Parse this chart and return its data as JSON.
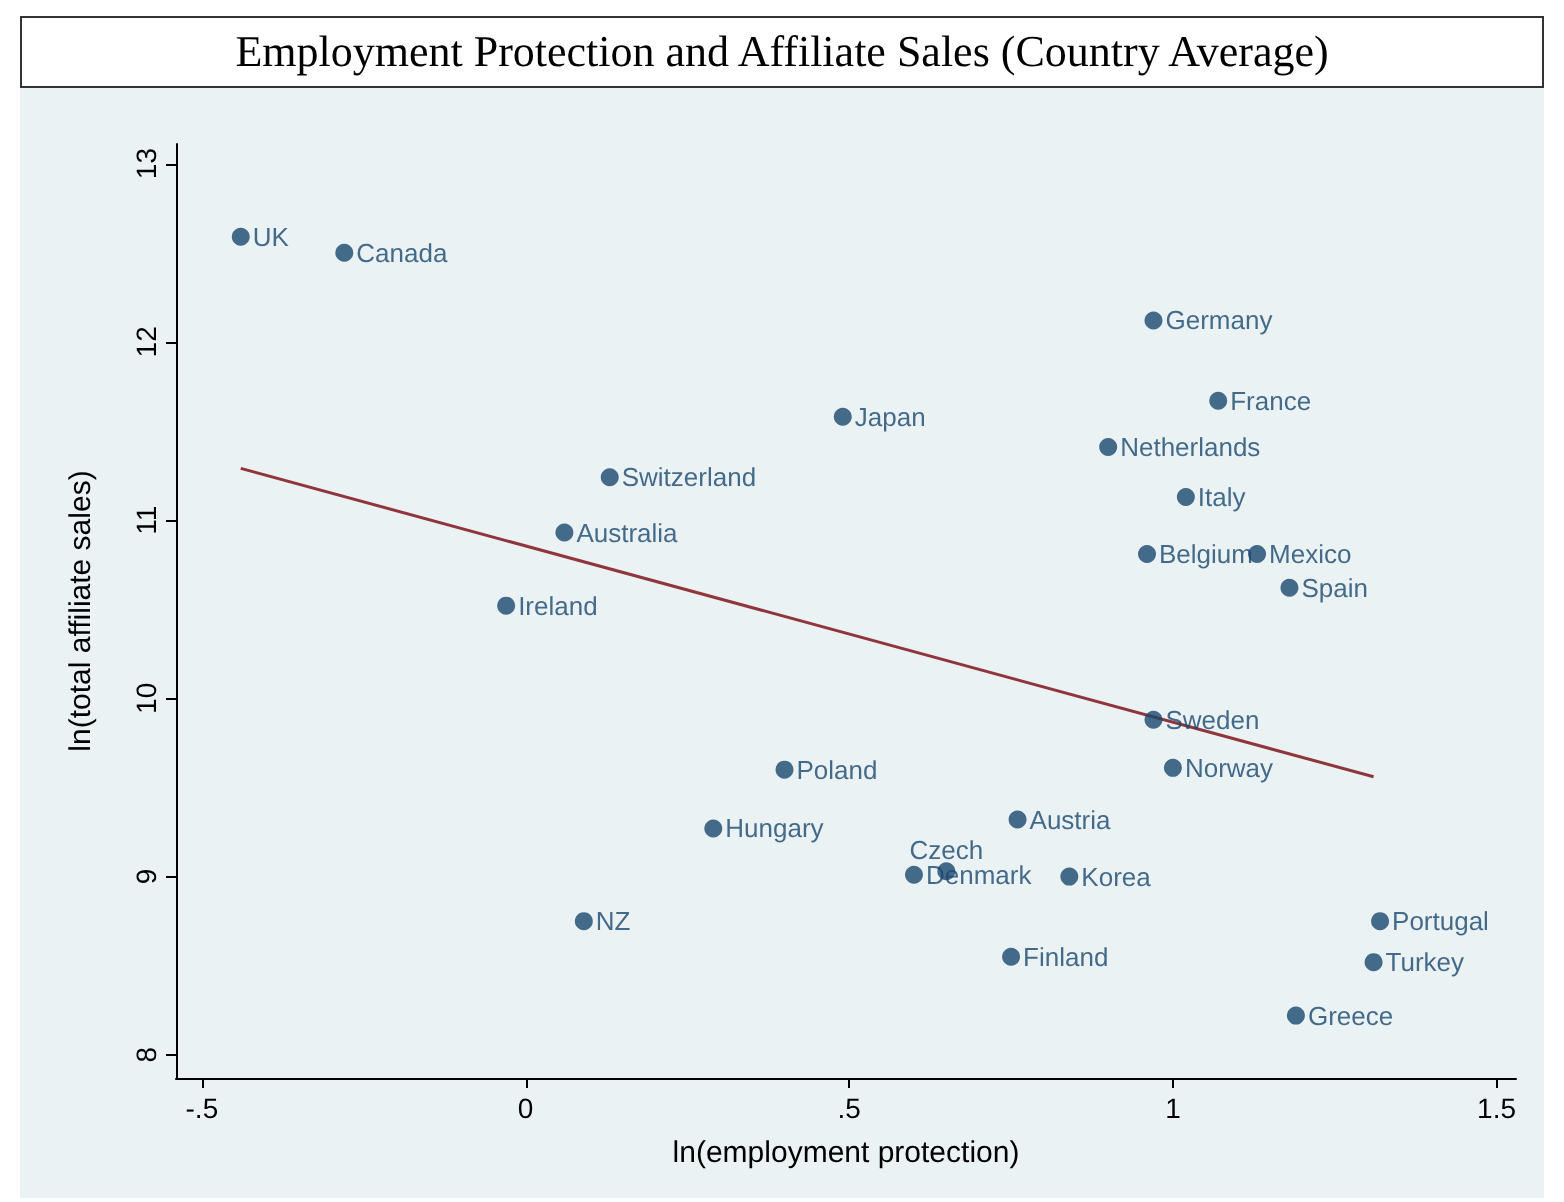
{
  "chart_data": {
    "type": "scatter",
    "title": "Employment Protection and Affiliate Sales (Country Average)",
    "xlabel": "ln(employment protection)",
    "ylabel": "ln(total affiliate sales)",
    "xlim": [
      -0.54,
      1.53
    ],
    "xticks": [
      {
        "value": -0.5,
        "label": "-.5"
      },
      0,
      {
        "value": 0.5,
        "label": ".5"
      },
      1,
      {
        "value": 1.5,
        "label": "1.5"
      }
    ],
    "ylim": [
      7.87,
      13.11
    ],
    "yticks": [
      8,
      9,
      10,
      11,
      12,
      13
    ],
    "marker": "circle",
    "grid": false,
    "series": [
      {
        "color": "#1a476f",
        "x": [
          -0.44,
          -0.28,
          0.97,
          1.07,
          0.49,
          0.9,
          0.13,
          1.02,
          0.06,
          0.96,
          1.13,
          1.18,
          -0.03,
          0.97,
          1.0,
          0.4,
          0.29,
          0.76,
          0.6,
          0.65,
          0.84,
          0.09,
          1.32,
          0.75,
          1.31,
          1.19
        ],
        "values": [
          12.59,
          12.5,
          12.12,
          11.67,
          11.58,
          11.41,
          11.24,
          11.13,
          10.93,
          10.81,
          10.81,
          10.62,
          10.52,
          9.88,
          9.61,
          9.6,
          9.27,
          9.32,
          9.01,
          9.03,
          9.0,
          8.75,
          8.75,
          8.55,
          8.52,
          8.22
        ]
      },
      {
        "type": "line",
        "color": "#90353b",
        "marker": "none",
        "x": [
          -0.44,
          1.31
        ],
        "values": [
          11.29,
          9.56
        ]
      }
    ],
    "annotations": [
      {
        "text": "UK",
        "x": -0.44,
        "y": 12.59
      },
      {
        "text": "Canada",
        "x": -0.28,
        "y": 12.5
      },
      {
        "text": "Germany",
        "x": 0.97,
        "y": 12.12
      },
      {
        "text": "France",
        "x": 1.07,
        "y": 11.67
      },
      {
        "text": "Japan",
        "x": 0.49,
        "y": 11.58
      },
      {
        "text": "Netherlands",
        "x": 0.9,
        "y": 11.41
      },
      {
        "text": "Switzerland",
        "x": 0.13,
        "y": 11.24
      },
      {
        "text": "Italy",
        "x": 1.02,
        "y": 11.13
      },
      {
        "text": "Australia",
        "x": 0.06,
        "y": 10.93
      },
      {
        "text": "Belgium",
        "x": 0.96,
        "y": 10.81
      },
      {
        "text": "Mexico",
        "x": 1.13,
        "y": 10.81
      },
      {
        "text": "Spain",
        "x": 1.18,
        "y": 10.62
      },
      {
        "text": "Ireland",
        "x": -0.03,
        "y": 10.52
      },
      {
        "text": "Sweden",
        "x": 0.97,
        "y": 9.88
      },
      {
        "text": "Norway",
        "x": 1.0,
        "y": 9.61
      },
      {
        "text": "Poland",
        "x": 0.4,
        "y": 9.6
      },
      {
        "text": "Hungary",
        "x": 0.29,
        "y": 9.27
      },
      {
        "text": "Austria",
        "x": 0.76,
        "y": 9.32
      },
      {
        "text": "Denmark",
        "x": 0.6,
        "y": 9.01
      },
      {
        "text": "Czech",
        "x": 0.65,
        "y": 9.03
      },
      {
        "text": "Korea",
        "x": 0.84,
        "y": 9.0
      },
      {
        "text": "NZ",
        "x": 0.09,
        "y": 8.75
      },
      {
        "text": "Portugal",
        "x": 1.32,
        "y": 8.75
      },
      {
        "text": "Finland",
        "x": 0.75,
        "y": 8.55
      },
      {
        "text": "Turkey",
        "x": 1.31,
        "y": 8.52
      },
      {
        "text": "Greece",
        "x": 1.19,
        "y": 8.22
      }
    ]
  }
}
